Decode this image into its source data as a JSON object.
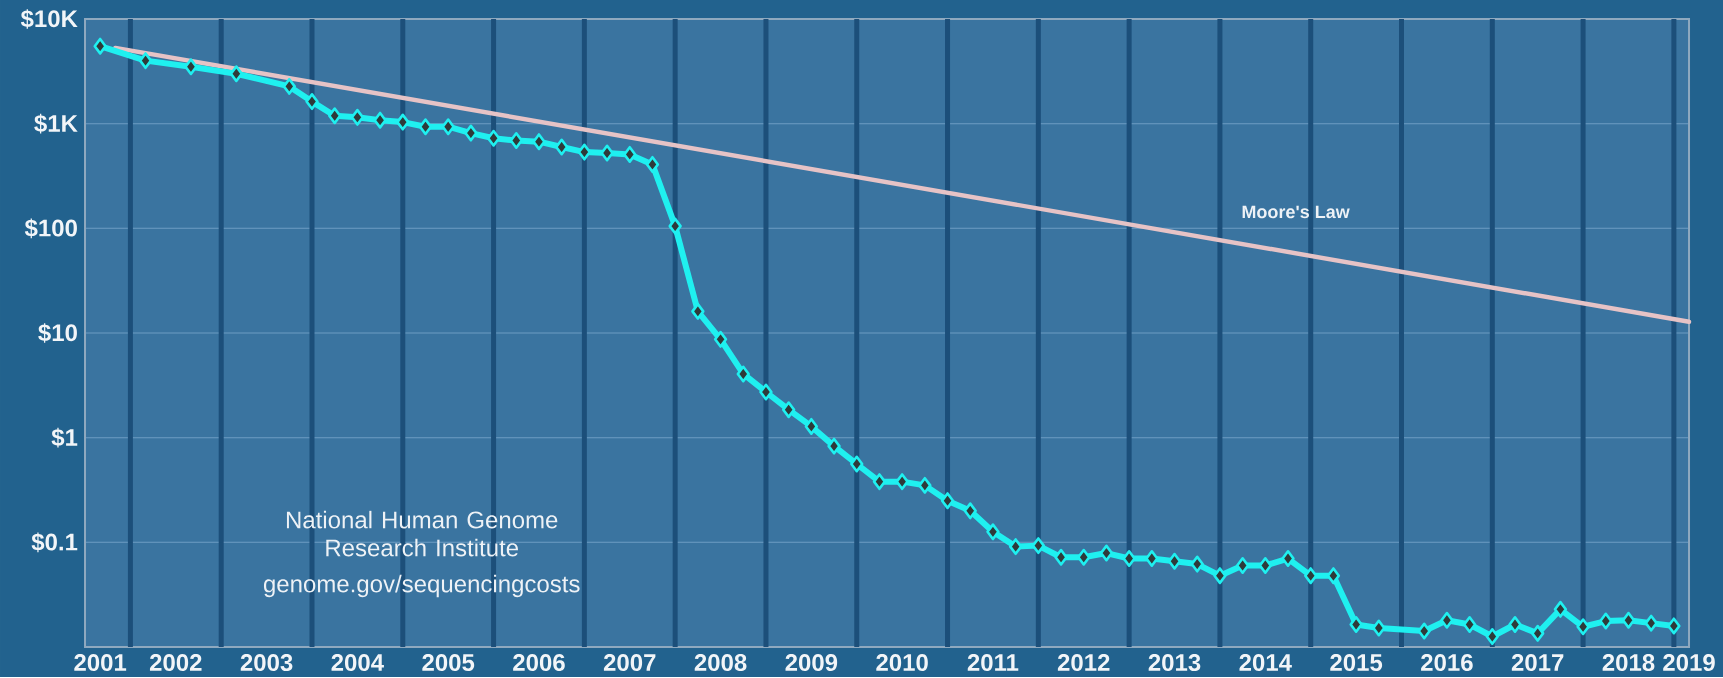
{
  "chart_data": {
    "type": "line",
    "log": "y",
    "grid": "y",
    "marker": "diamond",
    "line_style": "solid",
    "xlim": [
      "2001-07",
      "2019-03"
    ],
    "ylim": [
      0.01,
      10000
    ],
    "xticks": [
      {
        "value": "2001-09",
        "label": "2001"
      },
      {
        "value": "2002-07",
        "label": "2002"
      },
      {
        "value": "2003-07",
        "label": "2003"
      },
      {
        "value": "2004-07",
        "label": "2004"
      },
      {
        "value": "2005-07",
        "label": "2005"
      },
      {
        "value": "2006-07",
        "label": "2006"
      },
      {
        "value": "2007-07",
        "label": "2007"
      },
      {
        "value": "2008-07",
        "label": "2008"
      },
      {
        "value": "2009-07",
        "label": "2009"
      },
      {
        "value": "2010-07",
        "label": "2010"
      },
      {
        "value": "2011-07",
        "label": "2011"
      },
      {
        "value": "2012-07",
        "label": "2012"
      },
      {
        "value": "2013-07",
        "label": "2013"
      },
      {
        "value": "2014-07",
        "label": "2014"
      },
      {
        "value": "2015-07",
        "label": "2015"
      },
      {
        "value": "2016-07",
        "label": "2016"
      },
      {
        "value": "2017-07",
        "label": "2017"
      },
      {
        "value": "2018-07",
        "label": "2018"
      },
      {
        "value": "2019-03",
        "label": "2019"
      }
    ],
    "yticks": [
      {
        "value": 0.01,
        "label": null
      },
      {
        "value": 0.1,
        "label": "$0.1"
      },
      {
        "value": 1,
        "label": "$1"
      },
      {
        "value": 10,
        "label": "$10"
      },
      {
        "value": 100,
        "label": "$100"
      },
      {
        "value": 1000,
        "label": "$1K"
      },
      {
        "value": 10000,
        "label": "$10K"
      }
    ],
    "series": [
      {
        "color": "#1ff0f0",
        "x": [
          "2001-09",
          "2002-03",
          "2002-09",
          "2003-03",
          "2003-10",
          "2004-01",
          "2004-04",
          "2004-07",
          "2004-10",
          "2005-01",
          "2005-04",
          "2005-07",
          "2005-10",
          "2006-01",
          "2006-04",
          "2006-07",
          "2006-10",
          "2007-01",
          "2007-04",
          "2007-07",
          "2007-10",
          "2008-01",
          "2008-04",
          "2008-07",
          "2008-10",
          "2009-01",
          "2009-04",
          "2009-07",
          "2009-10",
          "2010-01",
          "2010-04",
          "2010-07",
          "2010-10",
          "2011-01",
          "2011-04",
          "2011-07",
          "2011-10",
          "2012-01",
          "2012-04",
          "2012-07",
          "2012-10",
          "2013-01",
          "2013-04",
          "2013-07",
          "2013-10",
          "2014-01",
          "2014-04",
          "2014-07",
          "2014-10",
          "2015-01",
          "2015-04",
          "2015-07",
          "2015-10",
          "2016-04",
          "2016-07",
          "2016-10",
          "2017-01",
          "2017-04",
          "2017-07",
          "2017-10",
          "2018-01",
          "2018-04",
          "2018-07",
          "2018-10",
          "2019-01"
        ],
        "values": [
          5500,
          4000,
          3500,
          3000,
          2270,
          1625,
          1190,
          1150,
          1080,
          1035,
          935,
          935,
          813,
          725,
          690,
          673,
          598,
          535,
          524,
          508,
          408,
          105,
          16.1,
          8.7,
          4.06,
          2.73,
          1.85,
          1.28,
          0.83,
          0.56,
          0.38,
          0.38,
          0.35,
          0.25,
          0.2,
          0.126,
          0.091,
          0.093,
          0.072,
          0.072,
          0.079,
          0.07,
          0.07,
          0.066,
          0.062,
          0.048,
          0.06,
          0.06,
          0.07,
          0.048,
          0.048,
          0.0164,
          0.0152,
          0.0142,
          0.018,
          0.0164,
          0.0126,
          0.0164,
          0.0135,
          0.0229,
          0.0156,
          0.0177,
          0.018,
          0.0169,
          0.0159
        ]
      },
      {
        "name": "Moore's Law",
        "color": "#e6c3c6",
        "marker": "none",
        "x": [
          "2001-11",
          "2019-03"
        ],
        "values": [
          5300,
          12.8
        ]
      }
    ],
    "ref_lines": [
      {
        "axis": "x",
        "value": "2002-01",
        "color": "#1c4f7a"
      },
      {
        "axis": "x",
        "value": "2003-01",
        "color": "#1c4f7a"
      },
      {
        "axis": "x",
        "value": "2004-01",
        "color": "#1c4f7a"
      },
      {
        "axis": "x",
        "value": "2005-01",
        "color": "#1c4f7a"
      },
      {
        "axis": "x",
        "value": "2006-01",
        "color": "#1c4f7a"
      },
      {
        "axis": "x",
        "value": "2007-01",
        "color": "#1c4f7a"
      },
      {
        "axis": "x",
        "value": "2008-01",
        "color": "#1c4f7a"
      },
      {
        "axis": "x",
        "value": "2009-01",
        "color": "#1c4f7a"
      },
      {
        "axis": "x",
        "value": "2010-01",
        "color": "#1c4f7a"
      },
      {
        "axis": "x",
        "value": "2011-01",
        "color": "#1c4f7a"
      },
      {
        "axis": "x",
        "value": "2012-01",
        "color": "#1c4f7a"
      },
      {
        "axis": "x",
        "value": "2013-01",
        "color": "#1c4f7a"
      },
      {
        "axis": "x",
        "value": "2014-01",
        "color": "#1c4f7a"
      },
      {
        "axis": "x",
        "value": "2015-01",
        "color": "#1c4f7a"
      },
      {
        "axis": "x",
        "value": "2016-01",
        "color": "#1c4f7a"
      },
      {
        "axis": "x",
        "value": "2017-01",
        "color": "#1c4f7a"
      },
      {
        "axis": "x",
        "value": "2018-01",
        "color": "#1c4f7a"
      },
      {
        "axis": "x",
        "value": "2019-01",
        "color": "#1c4f7a"
      }
    ],
    "annotations": [
      "National Human Genome Research Institute",
      "genome.gov/sequencingcosts"
    ]
  }
}
